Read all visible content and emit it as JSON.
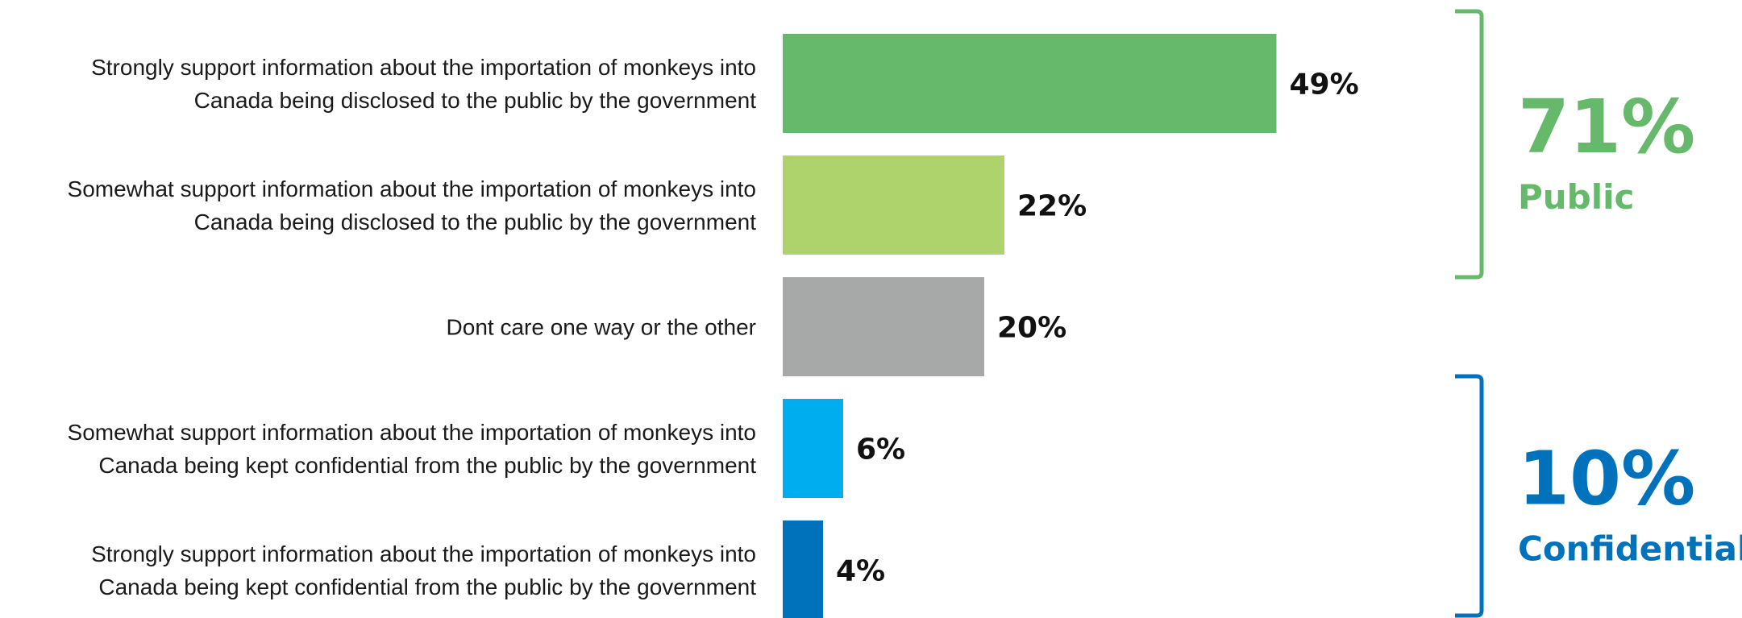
{
  "chart_data": {
    "type": "bar",
    "orientation": "horizontal",
    "categories": [
      [
        "Strongly support information about the importation of monkeys into",
        "Canada being disclosed to the public by the government"
      ],
      [
        "Somewhat support information about the importation of monkeys into",
        "Canada being disclosed to the public by the government"
      ],
      [
        "Dont care one way or the other"
      ],
      [
        "Somewhat support information about the importation of monkeys into",
        "Canada being kept confidential from the public by the government"
      ],
      [
        "Strongly support information about the importation of monkeys into",
        "Canada being kept confidential from the public by the government"
      ]
    ],
    "values": [
      49,
      22,
      20,
      6,
      4
    ],
    "value_labels": [
      "49%",
      "22%",
      "20%",
      "6%",
      "4%"
    ],
    "bar_colors": [
      "#66b86a",
      "#aed36c",
      "#a7a9a9",
      "#00aeef",
      "#0072bc"
    ],
    "xlim": [
      0,
      100
    ],
    "grid": false,
    "groups": [
      {
        "value": "71%",
        "label": "Public",
        "color": "#66b86a",
        "start": 0,
        "end": 1
      },
      {
        "value": "10%",
        "label": "Confidential",
        "color": "#0072bc",
        "start": 3,
        "end": 4
      }
    ]
  }
}
